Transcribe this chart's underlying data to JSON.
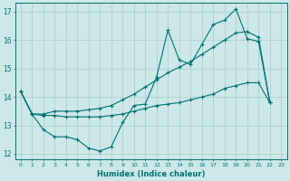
{
  "title": "",
  "xlabel": "Humidex (Indice chaleur)",
  "bg_color": "#cce8e8",
  "grid_color": "#b0d0d0",
  "line_color": "#007070",
  "xlim": [
    -0.5,
    23.5
  ],
  "ylim": [
    11.8,
    17.3
  ],
  "yticks": [
    12,
    13,
    14,
    15,
    16,
    17
  ],
  "xticks": [
    0,
    1,
    2,
    3,
    4,
    5,
    6,
    7,
    8,
    9,
    10,
    11,
    12,
    13,
    14,
    15,
    16,
    17,
    18,
    19,
    20,
    21,
    22,
    23
  ],
  "series": [
    {
      "x": [
        0,
        1,
        2,
        3,
        4,
        5,
        6,
        7,
        8,
        9,
        10,
        11,
        12,
        13,
        14,
        15,
        16,
        17,
        18,
        19,
        20,
        21,
        22
      ],
      "y": [
        14.2,
        13.4,
        12.85,
        12.6,
        12.6,
        12.5,
        12.2,
        12.1,
        12.25,
        13.1,
        13.7,
        13.75,
        14.7,
        16.35,
        15.3,
        15.15,
        15.85,
        16.55,
        16.7,
        17.1,
        16.05,
        15.95,
        13.8
      ]
    },
    {
      "x": [
        0,
        1,
        2,
        3,
        4,
        5,
        6,
        7,
        8,
        9,
        10,
        11,
        12,
        13,
        14,
        15,
        16,
        17,
        18,
        19,
        20,
        21,
        22
      ],
      "y": [
        14.2,
        13.4,
        13.35,
        13.35,
        13.3,
        13.3,
        13.3,
        13.3,
        13.35,
        13.4,
        13.5,
        13.6,
        13.7,
        13.75,
        13.8,
        13.9,
        14.0,
        14.1,
        14.3,
        14.4,
        14.5,
        14.5,
        13.8
      ]
    },
    {
      "x": [
        0,
        1,
        2,
        3,
        4,
        5,
        6,
        7,
        8,
        9,
        10,
        11,
        12,
        13,
        14,
        15,
        16,
        17,
        18,
        19,
        20,
        21,
        22
      ],
      "y": [
        14.2,
        13.4,
        13.4,
        13.5,
        13.5,
        13.5,
        13.55,
        13.6,
        13.7,
        13.9,
        14.1,
        14.35,
        14.6,
        14.85,
        15.05,
        15.25,
        15.5,
        15.75,
        16.0,
        16.25,
        16.3,
        16.1,
        13.8
      ]
    }
  ]
}
